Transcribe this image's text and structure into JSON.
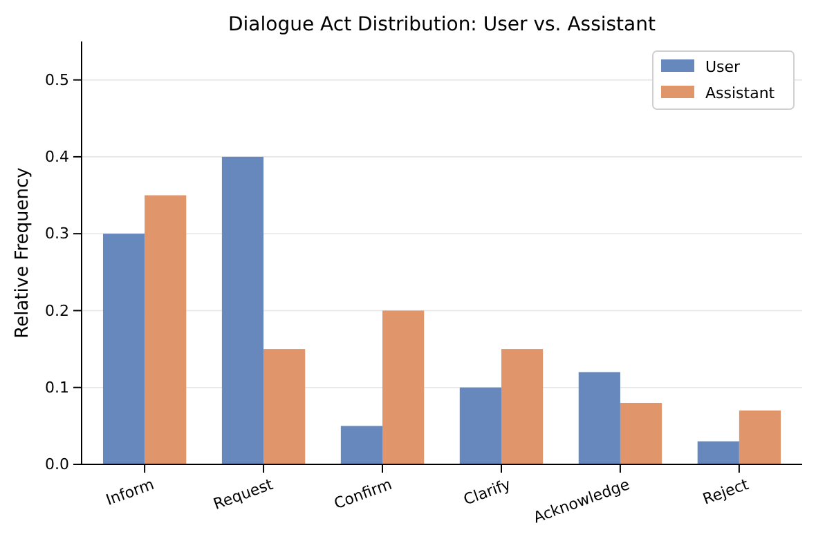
{
  "chart_data": {
    "type": "bar",
    "title": "Dialogue Act Distribution: User vs. Assistant",
    "ylabel": "Relative Frequency",
    "categories": [
      "Inform",
      "Request",
      "Confirm",
      "Clarify",
      "Acknowledge",
      "Reject"
    ],
    "series": [
      {
        "name": "User",
        "color": "#6788bd",
        "values": [
          0.3,
          0.4,
          0.05,
          0.1,
          0.12,
          0.03
        ]
      },
      {
        "name": "Assistant",
        "color": "#e1956a",
        "values": [
          0.35,
          0.15,
          0.2,
          0.15,
          0.08,
          0.07
        ]
      }
    ],
    "ylim": [
      0,
      0.55
    ],
    "yticks": [
      {
        "value": 0,
        "label": "0.0"
      },
      {
        "value": 0.1,
        "label": "0.1"
      },
      {
        "value": 0.2,
        "label": "0.2"
      },
      {
        "value": 0.3,
        "label": "0.3"
      },
      {
        "value": 0.4,
        "label": "0.4"
      },
      {
        "value": 0.5,
        "label": "0.5"
      }
    ],
    "grid": "y",
    "legend": "top right"
  }
}
